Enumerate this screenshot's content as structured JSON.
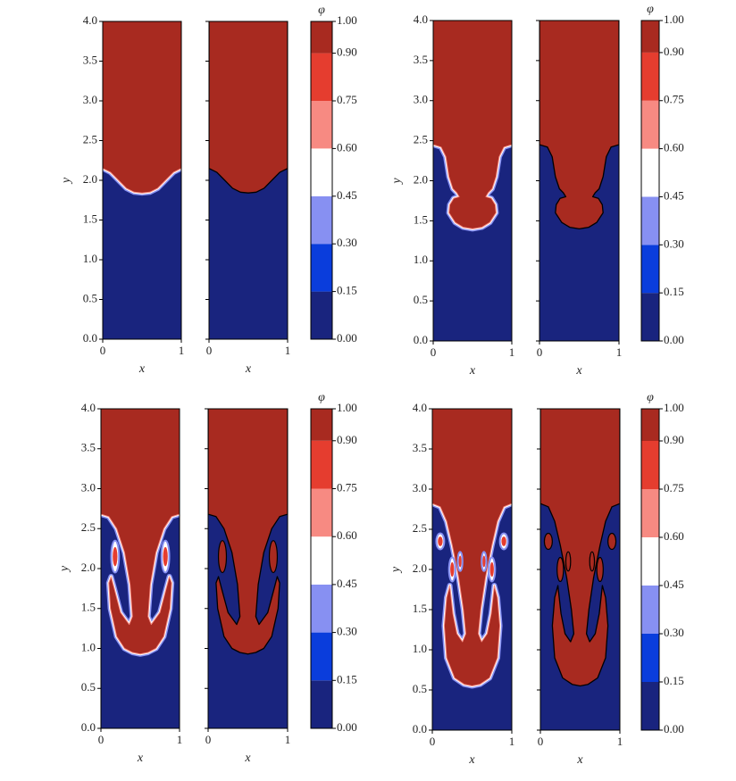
{
  "chart_data": [
    {
      "type": "contour",
      "xlabel": "x",
      "ylabel": "y",
      "xlim": [
        0,
        1
      ],
      "ylim": [
        0,
        4
      ],
      "xticks": [
        0,
        1
      ],
      "yticks": [
        {
          "value": 0,
          "label": "0.0"
        },
        0.5,
        {
          "value": 1,
          "label": "1.0"
        },
        1.5,
        {
          "value": 2,
          "label": "2.0"
        },
        2.5,
        {
          "value": 3,
          "label": "3.0"
        },
        3.5,
        {
          "value": 4,
          "label": "4.0"
        }
      ],
      "colorbar": {
        "label": "φ",
        "clim": [
          0,
          1
        ],
        "ticks": [
          {
            "value": 0,
            "label": "0.00"
          },
          0.15,
          {
            "value": 0.3,
            "label": "0.30"
          },
          0.45,
          {
            "value": 0.6,
            "label": "0.60"
          },
          0.75,
          {
            "value": 0.9,
            "label": "0.90"
          },
          {
            "value": 1,
            "label": "1.00"
          }
        ],
        "colors": [
          "#19247e",
          "#0a3ddc",
          "#8790f2",
          "#ffffff",
          "#f78a82",
          "#e53d2f",
          "#a82a20"
        ]
      }
    },
    {
      "type": "contour",
      "xlabel": "x",
      "ylabel": "y",
      "xlim": [
        0,
        1
      ],
      "ylim": [
        0,
        4
      ],
      "xticks": [
        0,
        1
      ],
      "yticks": [
        {
          "value": 0,
          "label": "0.0"
        },
        0.5,
        {
          "value": 1,
          "label": "1.0"
        },
        1.5,
        {
          "value": 2,
          "label": "2.0"
        },
        2.5,
        {
          "value": 3,
          "label": "3.0"
        },
        3.5,
        {
          "value": 4,
          "label": "4.0"
        }
      ],
      "colorbar": {
        "label": "φ",
        "clim": [
          0,
          1
        ],
        "ticks": [
          {
            "value": 0,
            "label": "0.00"
          },
          0.15,
          {
            "value": 0.3,
            "label": "0.30"
          },
          0.45,
          {
            "value": 0.6,
            "label": "0.60"
          },
          0.75,
          {
            "value": 0.9,
            "label": "0.90"
          },
          {
            "value": 1,
            "label": "1.00"
          }
        ],
        "colors": [
          "#19247e",
          "#0a3ddc",
          "#8790f2",
          "#ffffff",
          "#f78a82",
          "#e53d2f",
          "#a82a20"
        ]
      }
    },
    {
      "type": "contour",
      "xlabel": "x",
      "ylabel": "y",
      "xlim": [
        0,
        1
      ],
      "ylim": [
        0,
        4
      ],
      "xticks": [
        0,
        1
      ],
      "yticks": [
        {
          "value": 0,
          "label": "0.0"
        },
        0.5,
        {
          "value": 1,
          "label": "1.0"
        },
        1.5,
        {
          "value": 2,
          "label": "2.0"
        },
        2.5,
        {
          "value": 3,
          "label": "3.0"
        },
        3.5,
        {
          "value": 4,
          "label": "4.0"
        }
      ],
      "colorbar": {
        "label": "φ",
        "clim": [
          0,
          1
        ],
        "ticks": [
          {
            "value": 0,
            "label": "0.00"
          },
          0.15,
          {
            "value": 0.3,
            "label": "0.30"
          },
          0.45,
          {
            "value": 0.6,
            "label": "0.60"
          },
          0.75,
          {
            "value": 0.9,
            "label": "0.90"
          },
          {
            "value": 1,
            "label": "1.00"
          }
        ],
        "colors": [
          "#19247e",
          "#0a3ddc",
          "#8790f2",
          "#ffffff",
          "#f78a82",
          "#e53d2f",
          "#a82a20"
        ]
      }
    },
    {
      "type": "contour",
      "xlabel": "x",
      "ylabel": "y",
      "xlim": [
        0,
        1
      ],
      "ylim": [
        0,
        4
      ],
      "xticks": [
        0,
        1
      ],
      "yticks": [
        {
          "value": 0,
          "label": "0.0"
        },
        0.5,
        {
          "value": 1,
          "label": "1.0"
        },
        1.5,
        {
          "value": 2,
          "label": "2.0"
        },
        2.5,
        {
          "value": 3,
          "label": "3.0"
        },
        3.5,
        {
          "value": 4,
          "label": "4.0"
        }
      ],
      "colorbar": {
        "label": "φ",
        "clim": [
          0,
          1
        ],
        "ticks": [
          {
            "value": 0,
            "label": "0.00"
          },
          0.15,
          {
            "value": 0.3,
            "label": "0.30"
          },
          0.45,
          {
            "value": 0.6,
            "label": "0.60"
          },
          0.75,
          {
            "value": 0.9,
            "label": "0.90"
          },
          {
            "value": 1,
            "label": "1.00"
          }
        ],
        "colors": [
          "#19247e",
          "#0a3ddc",
          "#8790f2",
          "#ffffff",
          "#f78a82",
          "#e53d2f",
          "#a82a20"
        ]
      }
    }
  ]
}
